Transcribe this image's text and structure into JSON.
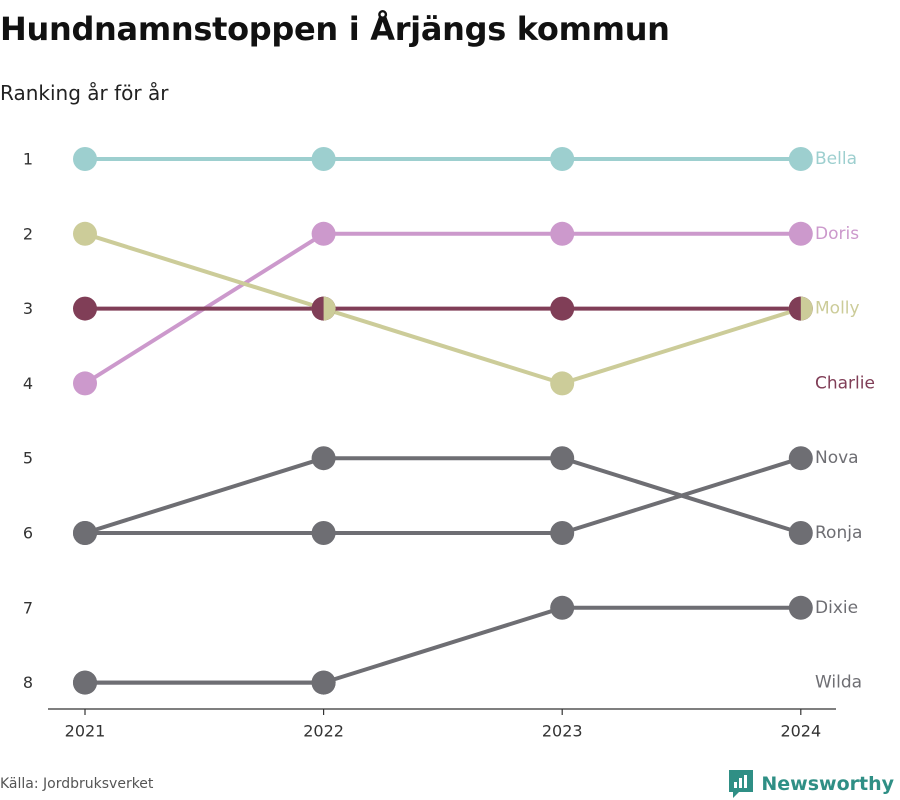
{
  "title": "Hundnamnstoppen i Årjängs kommun",
  "subtitle": "Ranking år för år",
  "source": "Källa: Jordbruksverket",
  "brand": {
    "name": "Newsworthy",
    "icon": "newsworthy-logo-icon"
  },
  "colors": {
    "Bella": "#9dcfcf",
    "Doris": "#cc99cc",
    "Molly": "#cccc99",
    "Charlie": "#803e57",
    "grey": "#6e6e73",
    "axis": "#333333",
    "brand": "#2f8f85"
  },
  "chart_data": {
    "type": "line",
    "x": [
      "2021",
      "2022",
      "2023",
      "2024"
    ],
    "y_ticks": [
      1,
      2,
      3,
      4,
      5,
      6,
      7,
      8
    ],
    "y_reversed": true,
    "ylim": [
      1,
      8
    ],
    "grid": false,
    "series": [
      {
        "name": "Bella",
        "values": [
          1,
          1,
          1,
          1
        ],
        "highlight": true
      },
      {
        "name": "Doris",
        "values": [
          4,
          2,
          2,
          2
        ],
        "highlight": true
      },
      {
        "name": "Molly",
        "values": [
          2,
          3,
          4,
          3
        ],
        "highlight": true
      },
      {
        "name": "Charlie",
        "values": [
          3,
          3,
          3,
          3
        ],
        "highlight": true
      },
      {
        "name": "Nova",
        "values": [
          6,
          6,
          6,
          5
        ],
        "highlight": false
      },
      {
        "name": "Ronja",
        "values": [
          6,
          5,
          5,
          6
        ],
        "highlight": false
      },
      {
        "name": "Dixie",
        "values": [
          8,
          8,
          7,
          7
        ],
        "highlight": false
      },
      {
        "name": "Wilda",
        "values": [
          8,
          8,
          null,
          null
        ],
        "highlight": false
      }
    ],
    "end_labels": [
      {
        "name": "Bella",
        "rank": 1
      },
      {
        "name": "Doris",
        "rank": 2
      },
      {
        "name": "Molly",
        "rank": 3
      },
      {
        "name": "Charlie",
        "rank": 4
      },
      {
        "name": "Nova",
        "rank": 5
      },
      {
        "name": "Ronja",
        "rank": 6
      },
      {
        "name": "Dixie",
        "rank": 7
      },
      {
        "name": "Wilda",
        "rank": 8
      }
    ]
  }
}
